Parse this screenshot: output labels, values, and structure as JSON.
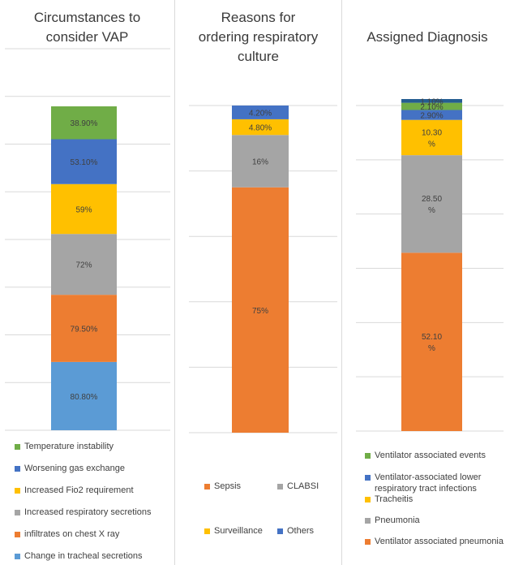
{
  "chart_data": [
    {
      "type": "bar",
      "stacked": true,
      "title": "Circumstances to consider VAP",
      "series": [
        {
          "name": "Change in  tracheal secretions",
          "value": 80.8,
          "label": "80.80%",
          "color": "#5b9bd5"
        },
        {
          "name": "infiltrates on chest X ray",
          "value": 79.5,
          "label": "79.50%",
          "color": "#ed7d31"
        },
        {
          "name": "Increased respiratory secretions",
          "value": 72,
          "label": "72%",
          "color": "#a5a5a5"
        },
        {
          "name": "Increased Fio2 requirement",
          "value": 59,
          "label": "59%",
          "color": "#ffc000"
        },
        {
          "name": "Worsening gas exchange",
          "value": 53.1,
          "label": "53.10%",
          "color": "#4472c4"
        },
        {
          "name": "Temperature instability",
          "value": 38.9,
          "label": "38.90%",
          "color": "#70ad47"
        }
      ],
      "ylim": [
        0,
        400
      ],
      "grid": true,
      "legend_position": "bottom"
    },
    {
      "type": "bar",
      "stacked": true,
      "title": "Reasons for ordering respiratory culture",
      "series": [
        {
          "name": "Sepsis",
          "value": 75,
          "label": "75%",
          "color": "#ed7d31"
        },
        {
          "name": "CLABSI",
          "value": 16,
          "label": "16%",
          "color": "#a5a5a5"
        },
        {
          "name": "Surveillance",
          "value": 4.8,
          "label": "4.80%",
          "color": "#ffc000"
        },
        {
          "name": "Others",
          "value": 4.2,
          "label": "4.20%",
          "color": "#4472c4"
        }
      ],
      "ylim": [
        0,
        100
      ],
      "grid": true,
      "legend_position": "bottom"
    },
    {
      "type": "bar",
      "stacked": true,
      "title": "Assigned Diagnosis",
      "series": [
        {
          "name": "Ventilator associated pneumonia",
          "value": 52.1,
          "label": "52.10 %",
          "color": "#ed7d31"
        },
        {
          "name": "Pneumonia",
          "value": 28.5,
          "label": "28.50 %",
          "color": "#a5a5a5"
        },
        {
          "name": "Tracheitis",
          "value": 10.3,
          "label": "10.30 %",
          "color": "#ffc000"
        },
        {
          "name": "Ventilator-associated lower respiratory tract infections",
          "value": 2.9,
          "label": "2.90%",
          "color": "#4472c4"
        },
        {
          "name": "Ventilator associated events",
          "value": 2.1,
          "label": "2.10%",
          "color": "#70ad47"
        },
        {
          "name": "",
          "value": 1.1,
          "label": "1.10%",
          "color": "#255e91"
        }
      ],
      "ylim": [
        0,
        100
      ],
      "grid": true,
      "legend_position": "bottom"
    }
  ]
}
